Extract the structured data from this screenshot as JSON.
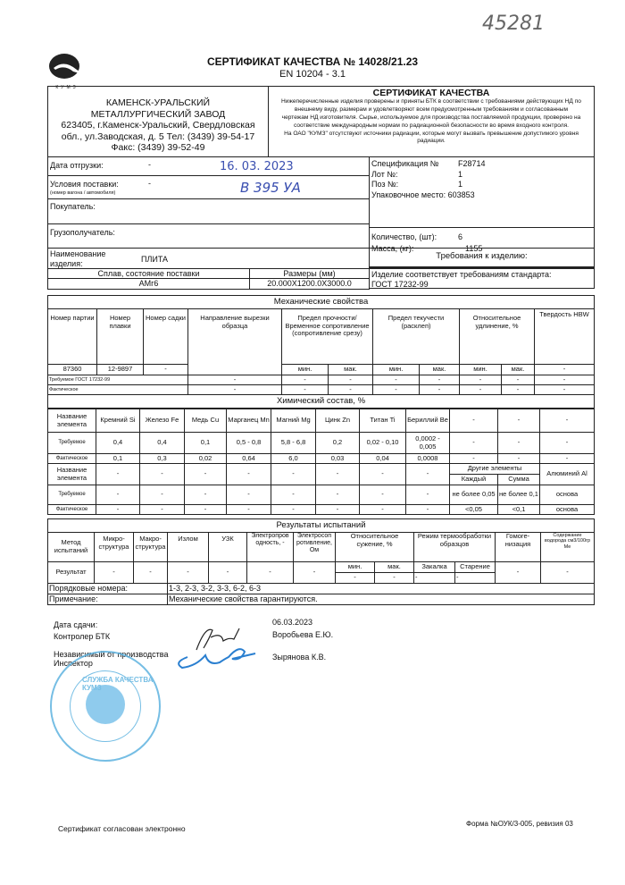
{
  "handwritten_number": "45281",
  "logo_text": "КУМЗ",
  "title": "СЕРТИФИКАТ КАЧЕСТВА № 14028/21.23",
  "subtitle": "EN 10204 - 3.1",
  "company": {
    "name1": "КАМЕНСК-УРАЛЬСКИЙ",
    "name2": "МЕТАЛЛУРГИЧЕСКИЙ ЗАВОД",
    "address1": "623405, г.Каменск-Уральский, Свердловская",
    "address2": "обл., ул.Заводская, д. 5 Тел: (3439) 39-54-17",
    "fax": "Факс: (3439) 39-52-49"
  },
  "cert_box": {
    "heading": "СЕРТИФИКАТ КАЧЕСТВА",
    "text1": "Нижеперечисленные изделия проверены и приняты БТК в соответствии с требованиями действующих НД по внешнему виду, размерам и удовлетворяют всем предусмотренным требованиям и согласованным чертежам НД изготовителя. Сырье, используемое для производства поставляемой продукции, проверено на соответствие международным нормам по радиационной безопасности во время входного контроля.",
    "text2": "На ОАО \"КУМЗ\" отсутствуют источники радиации, которые могут вызвать превышение допустимого уровня радиации."
  },
  "shipment": {
    "date_label": "Дата отгрузки:",
    "date_dash": "-",
    "date_hand": "16. 03. 2023",
    "terms_label": "Условия поставки:",
    "terms_sub": "(номер вагона / автомобиля)",
    "terms_dash": "-",
    "terms_hand": "В 395 УА",
    "buyer_label": "Покупатель:",
    "consignee_label": "Грузополучатель:",
    "product_label": "Наименование изделия:",
    "product": "ПЛИТА",
    "alloy_label": "Сплав, состояние поставки",
    "alloy": "АМг6",
    "size_label": "Размеры (мм)",
    "size": "20.000X1200.0X3000.0"
  },
  "spec": {
    "spec_label": "Спецификация №",
    "spec": "F28714",
    "lot_label": "Лот №:",
    "lot": "1",
    "pos_label": "Поз №:",
    "pos": "1",
    "pack_label": "Упаковочное место:",
    "pack": "603853",
    "qty_label": "Количество, (шт):",
    "qty": "6",
    "mass_label": "Масса, (кг):",
    "mass": "1155",
    "req_label": "Требования к изделию:",
    "std_label": "Изделие соответствует требованиям стандарта:",
    "std": "ГОСТ 17232-99"
  },
  "mech": {
    "title": "Механические свойства",
    "headers": [
      "Номер партии",
      "Номер плавки",
      "Номер садки",
      "Направление вырезки образца",
      "Предел прочности/ Временное сопротивление (сопротивление срезу)",
      "Предел текучести (расклеп)",
      "Относительное удлинение, %",
      "Твердость HBW"
    ],
    "min": "мин.",
    "max": "мак.",
    "batch": "87360",
    "heat": "12-9897",
    "cage": "-",
    "hbw": "-",
    "req_label": "Требуемое ГОСТ 17232-99",
    "act_label": "Фактическое",
    "dash": "-"
  },
  "chem": {
    "title": "Химический состав, %",
    "name_label": "Название элемента",
    "req_label": "Требуемое",
    "act_label": "Фактическое",
    "elements": [
      "Кремний Si",
      "Железо Fe",
      "Медь Cu",
      "Марганец Mn",
      "Магний Mg",
      "Цинк Zn",
      "Титан Ti",
      "Бериллий Be",
      "-",
      "-",
      "-"
    ],
    "required": [
      "0,4",
      "0,4",
      "0,1",
      "0,5 - 0,8",
      "5,8 - 6,8",
      "0,2",
      "0,02 - 0,10",
      "0,0002 - 0,005",
      "-",
      "-",
      "-"
    ],
    "actual": [
      "0,1",
      "0,3",
      "0,02",
      "0,64",
      "6,0",
      "0,03",
      "0,04",
      "0,0008",
      "-",
      "-",
      "-"
    ],
    "other_label": "Другие элементы",
    "each_label": "Каждый",
    "sum_label": "Сумма",
    "al_label": "Алюминий Al",
    "each_req": "не более 0,05",
    "sum_req": "не более 0,1",
    "al_req": "основа",
    "each_act": "<0,05",
    "sum_act": "<0,1",
    "al_act": "основа",
    "dash": "-"
  },
  "results": {
    "title": "Результаты испытаний",
    "headers": [
      "Метод испытаний",
      "Микро-структура",
      "Макро-структура",
      "Излом",
      "УЗК",
      "Электропров одность, -",
      "Электросоп ротивление, Ом",
      "Относительное сужение, %",
      "Режим термообработки образцов",
      "Гомоге-низация",
      "Содержание водорода см3/100гр Me"
    ],
    "min": "мин.",
    "max": "мак.",
    "quench": "Закалка",
    "aging": "Старение",
    "result_label": "Результат",
    "dash": "-",
    "order_label": "Порядковые номера:",
    "order": "1-3, 2-3, 3-2, 3-3, 6-2, 6-3",
    "note_label": "Примечание:",
    "note": "Механические свойства гарантируются."
  },
  "footer": {
    "date_label": "Дата сдачи:",
    "date": "06.03.2023",
    "controller_label": "Контролер БТК",
    "controller": "Воробьева Е.Ю.",
    "inspector_label1": "Независимый от производства",
    "inspector_label2": "Инспектор",
    "inspector": "Зырянова К.В.",
    "stamp_text": "СЛУЖБА КАЧЕСТВА КУМЗ",
    "electronic": "Сертификат согласован электронно",
    "form": "Форма №ОУК/3-005, ревизия 03"
  }
}
